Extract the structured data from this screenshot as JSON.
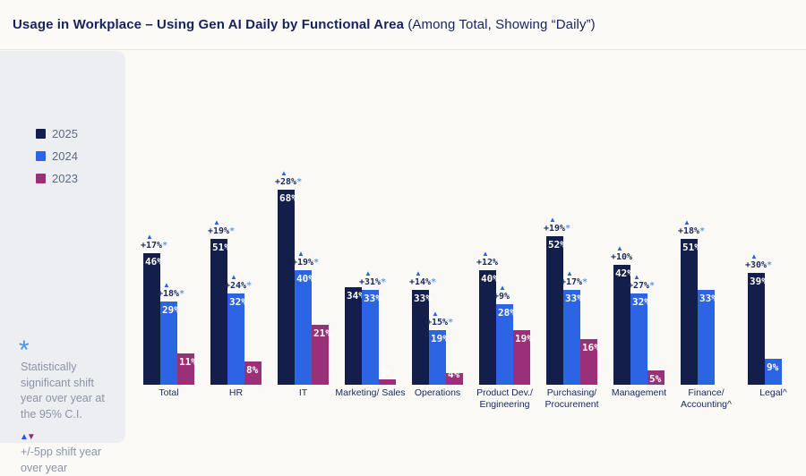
{
  "header": {
    "title_strong": "Usage in Workplace – Using Gen AI Daily by Functional Area",
    "title_normal": "(Among Total, Showing “Daily”)"
  },
  "legend": {
    "position": "left",
    "items": [
      {
        "label": "2025",
        "color": "#131f4a"
      },
      {
        "label": "2024",
        "color": "#2d64e4"
      },
      {
        "label": "2023",
        "color": "#9a3078"
      }
    ]
  },
  "notes": {
    "significance": {
      "symbol": "*",
      "text": "Statistically significant shift year over year at the 95% C.I."
    },
    "shift": {
      "symbol_up": "▲",
      "symbol_down": "▼",
      "text": "+/-5pp shift year over year"
    }
  },
  "colors": {
    "series": {
      "2025": "#131f4a",
      "2024": "#2d64e4",
      "2023": "#9a3078"
    },
    "accent_star": "#5e9be8",
    "triangle_up": "#2563eb",
    "triangle_down": "#8e2f70",
    "title_navy": "#17245c",
    "sidebar_bg": "#edeef1",
    "page_bg": "#faf9f6"
  },
  "chart_data": {
    "type": "bar",
    "unit": "%",
    "title": "Usage in Workplace – Using Gen AI Daily by Functional Area (Among Total, Showing “Daily”)",
    "series_names": [
      "2025",
      "2024",
      "2023"
    ],
    "value_range": [
      0,
      100
    ],
    "value_axis_hidden": true,
    "grid": false,
    "legend_position": "left",
    "categories": [
      "Total",
      "HR",
      "IT",
      "Marketing/ Sales",
      "Operations",
      "Product Dev./ Engineering",
      "Purchasing/ Procurement",
      "Management",
      "Finance/ Accounting^",
      "Legal^"
    ],
    "groups": [
      {
        "category": "Total",
        "label_lines": [
          "Total"
        ],
        "bars": [
          {
            "year": "2025",
            "value": 46,
            "shift": "+17%",
            "significant": true
          },
          {
            "year": "2024",
            "value": 29,
            "shift": "+18%",
            "significant": true
          },
          {
            "year": "2023",
            "value": 11
          }
        ]
      },
      {
        "category": "HR",
        "label_lines": [
          "HR"
        ],
        "bars": [
          {
            "year": "2025",
            "value": 51,
            "shift": "+19%",
            "significant": true
          },
          {
            "year": "2024",
            "value": 32,
            "shift": "+24%",
            "significant": true
          },
          {
            "year": "2023",
            "value": 8
          }
        ]
      },
      {
        "category": "IT",
        "label_lines": [
          "IT"
        ],
        "bars": [
          {
            "year": "2025",
            "value": 68,
            "shift": "+28%",
            "significant": true
          },
          {
            "year": "2024",
            "value": 40,
            "shift": "+19%",
            "significant": true
          },
          {
            "year": "2023",
            "value": 21
          }
        ]
      },
      {
        "category": "Marketing/ Sales",
        "label_lines": [
          "Marketing/ Sales"
        ],
        "bars": [
          {
            "year": "2025",
            "value": 34
          },
          {
            "year": "2024",
            "value": 33,
            "shift": "+31%",
            "significant": true
          },
          {
            "year": "2023",
            "value": 2
          }
        ]
      },
      {
        "category": "Operations",
        "label_lines": [
          "Operations"
        ],
        "bars": [
          {
            "year": "2025",
            "value": 33,
            "shift": "+14%",
            "significant": true
          },
          {
            "year": "2024",
            "value": 19,
            "shift": "+15%",
            "significant": true
          },
          {
            "year": "2023",
            "value": 4
          }
        ]
      },
      {
        "category": "Product Dev./ Engineering",
        "label_lines": [
          "Product Dev./",
          "Engineering"
        ],
        "bars": [
          {
            "year": "2025",
            "value": 40,
            "shift": "+12%",
            "significant": false
          },
          {
            "year": "2024",
            "value": 28,
            "shift": "+9%",
            "significant": false
          },
          {
            "year": "2023",
            "value": 19
          }
        ]
      },
      {
        "category": "Purchasing/ Procurement",
        "label_lines": [
          "Purchasing/",
          "Procurement"
        ],
        "bars": [
          {
            "year": "2025",
            "value": 52,
            "shift": "+19%",
            "significant": true
          },
          {
            "year": "2024",
            "value": 33,
            "shift": "+17%",
            "significant": true
          },
          {
            "year": "2023",
            "value": 16
          }
        ]
      },
      {
        "category": "Management",
        "label_lines": [
          "Management"
        ],
        "bars": [
          {
            "year": "2025",
            "value": 42,
            "shift": "+10%",
            "significant": false
          },
          {
            "year": "2024",
            "value": 32,
            "shift": "+27%",
            "significant": true
          },
          {
            "year": "2023",
            "value": 5
          }
        ]
      },
      {
        "category": "Finance/ Accounting^",
        "label_lines": [
          "Finance/",
          "Accounting^"
        ],
        "bars": [
          {
            "year": "2025",
            "value": 51,
            "shift": "+18%",
            "significant": true
          },
          {
            "year": "2024",
            "value": 33
          }
        ]
      },
      {
        "category": "Legal^",
        "label_lines": [
          "Legal^"
        ],
        "bars": [
          {
            "year": "2025",
            "value": 39,
            "shift": "+30%",
            "significant": true
          },
          {
            "year": "2024",
            "value": 9
          }
        ]
      }
    ]
  }
}
